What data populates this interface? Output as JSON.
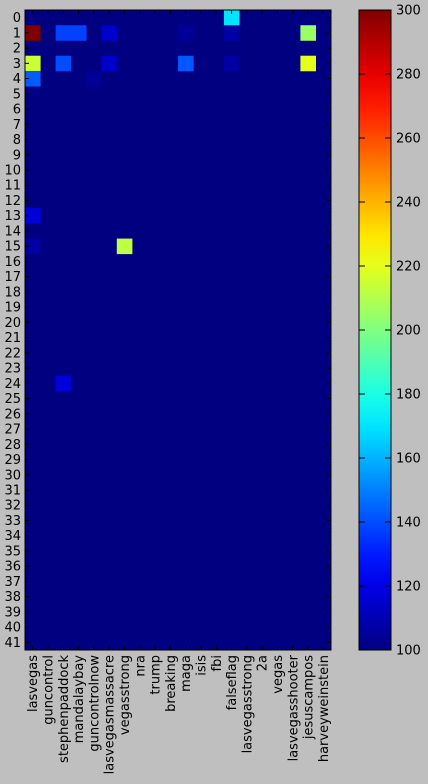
{
  "chart_data": {
    "type": "heatmap",
    "title": "",
    "xlabel": "",
    "ylabel": "",
    "x_labels": [
      "lasvegas",
      "guncontrol",
      "stephenpaddock",
      "mandalaybay",
      "guncontrolnow",
      "lasvegasmassacre",
      "vegasstrong",
      "nra",
      "trump",
      "breaking",
      "maga",
      "isis",
      "fbi",
      "falseflag",
      "lasvegasstrong",
      "2a",
      "vegas",
      "lasvegasshooter",
      "jesuscampos",
      "harveyweinstein"
    ],
    "y_labels": [
      "0",
      "1",
      "2",
      "3",
      "4",
      "5",
      "6",
      "7",
      "8",
      "9",
      "10",
      "11",
      "12",
      "13",
      "14",
      "15",
      "16",
      "17",
      "18",
      "19",
      "20",
      "21",
      "22",
      "23",
      "24",
      "25",
      "26",
      "27",
      "28",
      "29",
      "30",
      "31",
      "32",
      "33",
      "34",
      "35",
      "36",
      "37",
      "38",
      "39",
      "40",
      "41"
    ],
    "vmin": 100,
    "vmax": 300,
    "colormap": "jet",
    "default_value": 100,
    "cells": [
      {
        "row": 0,
        "col": 13,
        "value": 170
      },
      {
        "row": 1,
        "col": 0,
        "value": 300
      },
      {
        "row": 1,
        "col": 2,
        "value": 138
      },
      {
        "row": 1,
        "col": 3,
        "value": 138
      },
      {
        "row": 1,
        "col": 5,
        "value": 115
      },
      {
        "row": 1,
        "col": 10,
        "value": 105
      },
      {
        "row": 1,
        "col": 13,
        "value": 107
      },
      {
        "row": 1,
        "col": 18,
        "value": 205
      },
      {
        "row": 3,
        "col": 0,
        "value": 215
      },
      {
        "row": 3,
        "col": 2,
        "value": 140
      },
      {
        "row": 3,
        "col": 5,
        "value": 115
      },
      {
        "row": 3,
        "col": 10,
        "value": 142
      },
      {
        "row": 3,
        "col": 13,
        "value": 107
      },
      {
        "row": 3,
        "col": 18,
        "value": 220
      },
      {
        "row": 4,
        "col": 0,
        "value": 143
      },
      {
        "row": 4,
        "col": 4,
        "value": 105
      },
      {
        "row": 13,
        "col": 0,
        "value": 118
      },
      {
        "row": 15,
        "col": 0,
        "value": 107
      },
      {
        "row": 15,
        "col": 6,
        "value": 212
      },
      {
        "row": 24,
        "col": 2,
        "value": 118
      }
    ],
    "colorbar": {
      "ticks": [
        100,
        120,
        140,
        160,
        180,
        200,
        220,
        240,
        260,
        280,
        300
      ],
      "tick_labels": [
        "100",
        "120",
        "140",
        "160",
        "180",
        "200",
        "220",
        "240",
        "260",
        "280",
        "300"
      ]
    },
    "grid": false,
    "legend": "none"
  }
}
